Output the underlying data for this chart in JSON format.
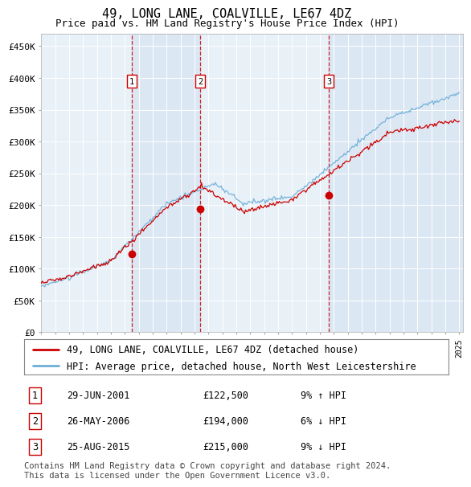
{
  "title": "49, LONG LANE, COALVILLE, LE67 4DZ",
  "subtitle": "Price paid vs. HM Land Registry's House Price Index (HPI)",
  "ylim": [
    0,
    470000
  ],
  "yticks": [
    0,
    50000,
    100000,
    150000,
    200000,
    250000,
    300000,
    350000,
    400000,
    450000
  ],
  "ytick_labels": [
    "£0",
    "£50K",
    "£100K",
    "£150K",
    "£200K",
    "£250K",
    "£300K",
    "£350K",
    "£400K",
    "£450K"
  ],
  "hpi_color": "#6baed6",
  "price_color": "#cc0000",
  "vline_color": "#cc0000",
  "plot_bg": "#e8f0f8",
  "shade_color": "#c6d9ef",
  "sales": [
    {
      "date_num": 2001.49,
      "price": 122500,
      "label": "1",
      "date_str": "29-JUN-2001",
      "price_str": "£122,500",
      "pct": "9%",
      "dir": "↑"
    },
    {
      "date_num": 2006.4,
      "price": 194000,
      "label": "2",
      "date_str": "26-MAY-2006",
      "price_str": "£194,000",
      "pct": "6%",
      "dir": "↓"
    },
    {
      "date_num": 2015.65,
      "price": 215000,
      "label": "3",
      "date_str": "25-AUG-2015",
      "price_str": "£215,000",
      "pct": "9%",
      "dir": "↓"
    }
  ],
  "legend_address": "49, LONG LANE, COALVILLE, LE67 4DZ (detached house)",
  "legend_hpi": "HPI: Average price, detached house, North West Leicestershire",
  "footnote": "Contains HM Land Registry data © Crown copyright and database right 2024.\nThis data is licensed under the Open Government Licence v3.0.",
  "title_fontsize": 11,
  "subtitle_fontsize": 9,
  "tick_fontsize": 8,
  "legend_fontsize": 8.5,
  "footnote_fontsize": 7.5
}
